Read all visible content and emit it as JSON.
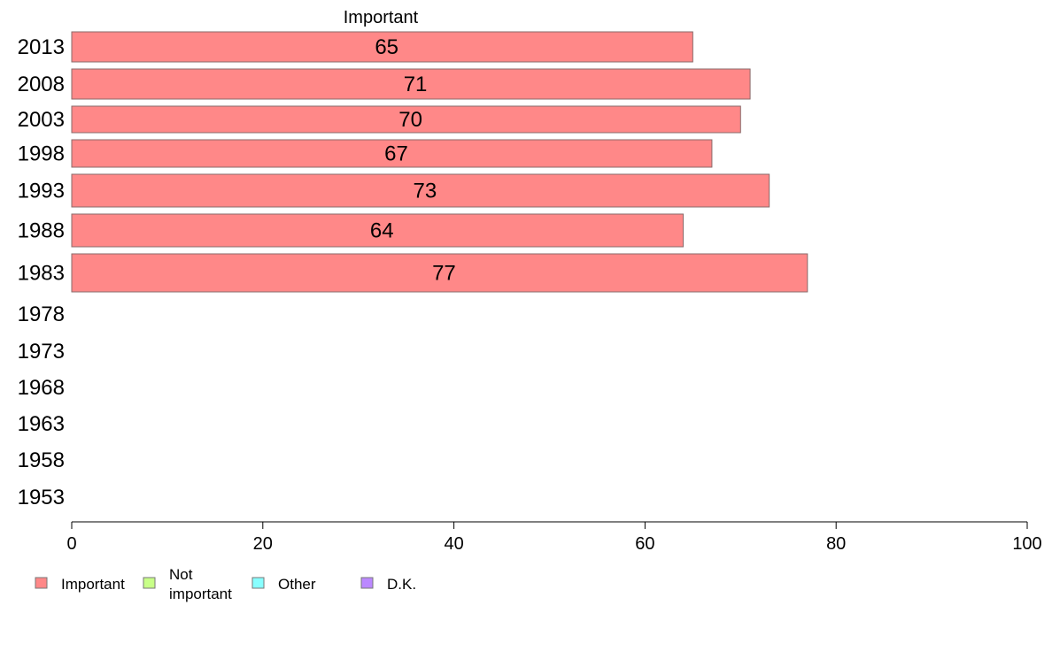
{
  "chart_data": {
    "type": "bar",
    "orientation": "horizontal",
    "header": "Important",
    "categories": [
      "2013",
      "2008",
      "2003",
      "1998",
      "1993",
      "1988",
      "1983",
      "1978",
      "1973",
      "1968",
      "1963",
      "1958",
      "1953"
    ],
    "series": [
      {
        "name": "Important",
        "color": "#ff8888",
        "values": [
          65,
          71,
          70,
          67,
          73,
          64,
          77,
          null,
          null,
          null,
          null,
          null,
          null
        ]
      }
    ],
    "xlim": [
      0,
      100
    ],
    "xticks": [
      "0",
      "20",
      "40",
      "60",
      "80",
      "100"
    ],
    "grid": false,
    "legend_position": "bottom-left"
  },
  "legend": [
    {
      "label": "Important",
      "color": "#ff8888"
    },
    {
      "label": "Not important",
      "line1": "Not",
      "line2": "important",
      "color": "#c8ff88"
    },
    {
      "label": "Other",
      "color": "#88ffff"
    },
    {
      "label": "D.K.",
      "color": "#bb88ff"
    }
  ]
}
